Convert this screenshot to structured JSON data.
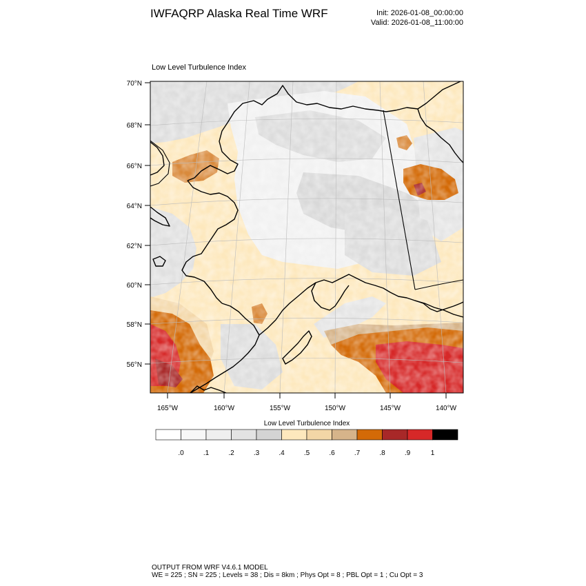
{
  "header": {
    "title": "IWFAQRP Alaska Real Time WRF",
    "init": "Init: 2026-01-08_00:00:00",
    "valid": "Valid: 2026-01-08_11:00:00"
  },
  "map": {
    "subtitle": "Low Level Turbulence Index",
    "lat_labels": [
      "70°N",
      "68°N",
      "66°N",
      "64°N",
      "62°N",
      "60°N",
      "58°N",
      "56°N"
    ],
    "lon_labels": [
      "165°W",
      "160°W",
      "155°W",
      "150°W",
      "145°W",
      "140°W"
    ],
    "region": "Alaska"
  },
  "colorbar": {
    "title": "Low Level Turbulence Index",
    "labels": [
      ".0",
      ".1",
      ".2",
      ".3",
      ".4",
      ".5",
      ".6",
      ".7",
      ".8",
      ".9",
      "1"
    ],
    "colors": [
      "#ffffff",
      "#f7f7f7",
      "#efefef",
      "#e3e3e3",
      "#d4d4d4",
      "#fde8bd",
      "#f3d6a6",
      "#d6b48a",
      "#d36a07",
      "#a82828",
      "#d62828",
      "#000000"
    ]
  },
  "footer": {
    "line1": "OUTPUT FROM WRF V4.6.1 MODEL",
    "line2": "WE = 225 ; SN = 225 ; Levels = 38 ; Dis = 8km ; Phys Opt = 8 ; PBL Opt = 1 ; Cu Opt = 3"
  }
}
